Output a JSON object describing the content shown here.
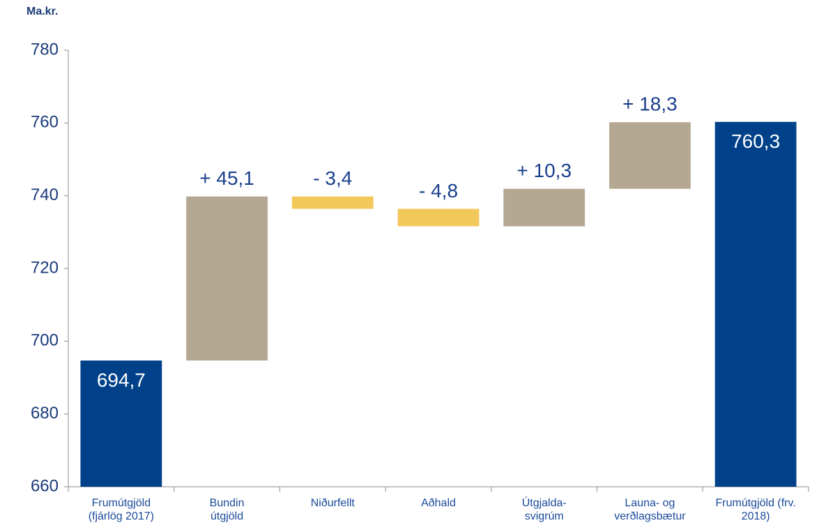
{
  "chart_data": {
    "type": "waterfall",
    "y_label": "Ma.kr.",
    "categories": [
      "Frumútgjöld\n(fjárlög 2017)",
      "Bundin\nútgjöld",
      "Niðurfellt",
      "Aðhald",
      "Útgjalda-\nsvigrúm",
      "Launa- og\nverðlagsbætur",
      "Frumútgjöld (frv.\n2018)"
    ],
    "values": [
      694.7,
      45.1,
      -3.4,
      -4.8,
      10.3,
      18.3,
      760.3
    ],
    "value_labels": [
      "694,7",
      "+ 45,1",
      "- 3,4",
      "- 4,8",
      "+ 10,3",
      "+ 18,3",
      "760,3"
    ],
    "measure": [
      "absolute",
      "relative",
      "relative",
      "relative",
      "relative",
      "relative",
      "absolute"
    ],
    "total_color": "#00418a",
    "increasing_color": "#b5a893",
    "decreasing_color": "#f2c85b",
    "ylim": [
      660,
      780
    ],
    "yticks": [
      660,
      680,
      700,
      720,
      740,
      760,
      780
    ],
    "grid": false
  }
}
